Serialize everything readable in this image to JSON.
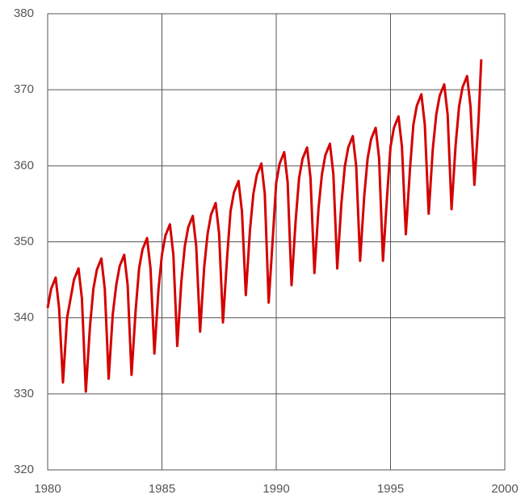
{
  "chart_data": {
    "type": "line",
    "x": [
      1980.0,
      1980.15,
      1980.35,
      1980.5,
      1980.67,
      1980.85,
      1981.0,
      1981.15,
      1981.35,
      1981.5,
      1981.67,
      1981.85,
      1982.0,
      1982.15,
      1982.35,
      1982.5,
      1982.67,
      1982.85,
      1983.0,
      1983.15,
      1983.35,
      1983.5,
      1983.67,
      1983.85,
      1984.0,
      1984.15,
      1984.35,
      1984.5,
      1984.67,
      1984.85,
      1985.0,
      1985.15,
      1985.35,
      1985.5,
      1985.67,
      1985.85,
      1986.0,
      1986.15,
      1986.35,
      1986.5,
      1986.67,
      1986.85,
      1987.0,
      1987.15,
      1987.35,
      1987.5,
      1987.67,
      1987.85,
      1988.0,
      1988.15,
      1988.35,
      1988.5,
      1988.67,
      1988.85,
      1989.0,
      1989.15,
      1989.35,
      1989.5,
      1989.67,
      1989.85,
      1990.0,
      1990.15,
      1990.35,
      1990.5,
      1990.67,
      1990.85,
      1991.0,
      1991.15,
      1991.35,
      1991.5,
      1991.67,
      1991.85,
      1992.0,
      1992.15,
      1992.35,
      1992.5,
      1992.67,
      1992.85,
      1993.0,
      1993.15,
      1993.35,
      1993.5,
      1993.67,
      1993.85,
      1994.0,
      1994.15,
      1994.35,
      1994.5,
      1994.67,
      1994.85,
      1995.0,
      1995.15,
      1995.35,
      1995.5,
      1995.67,
      1995.85,
      1996.0,
      1996.15,
      1996.35,
      1996.5,
      1996.67,
      1996.85,
      1997.0,
      1997.15,
      1997.35,
      1997.5,
      1997.67,
      1997.85,
      1998.0,
      1998.15,
      1998.35,
      1998.5,
      1998.67,
      1998.85,
      1998.97
    ],
    "series": [
      {
        "color": "#d40000",
        "values": [
          341.3,
          343.8,
          345.3,
          341.3,
          331.5,
          340.0,
          342.5,
          345.0,
          346.5,
          342.5,
          330.3,
          338.8,
          343.8,
          346.3,
          347.8,
          343.8,
          332.0,
          340.5,
          344.3,
          346.8,
          348.3,
          344.3,
          332.5,
          341.0,
          346.5,
          349.0,
          350.5,
          346.5,
          335.3,
          343.8,
          348.3,
          350.8,
          352.3,
          348.3,
          336.3,
          344.8,
          349.4,
          351.9,
          353.4,
          349.4,
          338.2,
          346.7,
          351.1,
          353.6,
          355.1,
          351.1,
          339.4,
          347.9,
          354.0,
          356.5,
          358.0,
          354.0,
          343.0,
          351.5,
          356.3,
          358.8,
          360.3,
          356.3,
          342.0,
          350.5,
          357.8,
          360.3,
          361.8,
          357.8,
          344.3,
          352.8,
          358.4,
          360.9,
          362.4,
          358.4,
          345.9,
          354.4,
          358.9,
          361.4,
          362.9,
          358.9,
          346.5,
          355.0,
          359.9,
          362.4,
          363.9,
          359.9,
          347.5,
          356.0,
          361.0,
          363.5,
          365.0,
          361.0,
          347.5,
          356.0,
          362.5,
          365.0,
          366.5,
          362.5,
          351.0,
          359.5,
          365.4,
          367.9,
          369.4,
          365.4,
          353.7,
          362.2,
          366.7,
          369.2,
          370.7,
          366.7,
          354.3,
          362.8,
          367.8,
          370.3,
          371.8,
          367.8,
          357.5,
          366.0,
          374.0
        ]
      }
    ],
    "xlim": [
      1980,
      2000
    ],
    "xticks": [
      1980,
      1985,
      1990,
      1995,
      2000
    ],
    "ylim": [
      320,
      380
    ],
    "yticks": [
      320,
      330,
      340,
      350,
      360,
      370,
      380
    ],
    "grid": true
  }
}
